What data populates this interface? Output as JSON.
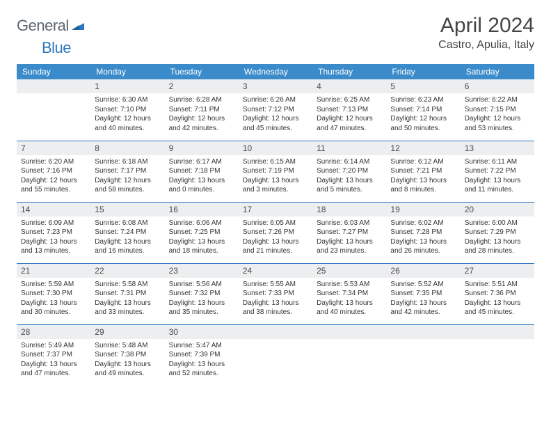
{
  "logo": {
    "text1": "General",
    "text2": "Blue"
  },
  "title": "April 2024",
  "location": "Castro, Apulia, Italy",
  "colors": {
    "header_bg": "#3b8bca",
    "header_fg": "#ffffff",
    "daynum_bg": "#eceef0",
    "divider": "#2d78bf",
    "logo_gray": "#5a6670",
    "logo_blue": "#2d78bf",
    "bg": "#ffffff",
    "text": "#333333"
  },
  "day_headers": [
    "Sunday",
    "Monday",
    "Tuesday",
    "Wednesday",
    "Thursday",
    "Friday",
    "Saturday"
  ],
  "weeks": [
    [
      {
        "n": "",
        "lines": []
      },
      {
        "n": "1",
        "lines": [
          "Sunrise: 6:30 AM",
          "Sunset: 7:10 PM",
          "Daylight: 12 hours",
          "and 40 minutes."
        ]
      },
      {
        "n": "2",
        "lines": [
          "Sunrise: 6:28 AM",
          "Sunset: 7:11 PM",
          "Daylight: 12 hours",
          "and 42 minutes."
        ]
      },
      {
        "n": "3",
        "lines": [
          "Sunrise: 6:26 AM",
          "Sunset: 7:12 PM",
          "Daylight: 12 hours",
          "and 45 minutes."
        ]
      },
      {
        "n": "4",
        "lines": [
          "Sunrise: 6:25 AM",
          "Sunset: 7:13 PM",
          "Daylight: 12 hours",
          "and 47 minutes."
        ]
      },
      {
        "n": "5",
        "lines": [
          "Sunrise: 6:23 AM",
          "Sunset: 7:14 PM",
          "Daylight: 12 hours",
          "and 50 minutes."
        ]
      },
      {
        "n": "6",
        "lines": [
          "Sunrise: 6:22 AM",
          "Sunset: 7:15 PM",
          "Daylight: 12 hours",
          "and 53 minutes."
        ]
      }
    ],
    [
      {
        "n": "7",
        "lines": [
          "Sunrise: 6:20 AM",
          "Sunset: 7:16 PM",
          "Daylight: 12 hours",
          "and 55 minutes."
        ]
      },
      {
        "n": "8",
        "lines": [
          "Sunrise: 6:18 AM",
          "Sunset: 7:17 PM",
          "Daylight: 12 hours",
          "and 58 minutes."
        ]
      },
      {
        "n": "9",
        "lines": [
          "Sunrise: 6:17 AM",
          "Sunset: 7:18 PM",
          "Daylight: 13 hours",
          "and 0 minutes."
        ]
      },
      {
        "n": "10",
        "lines": [
          "Sunrise: 6:15 AM",
          "Sunset: 7:19 PM",
          "Daylight: 13 hours",
          "and 3 minutes."
        ]
      },
      {
        "n": "11",
        "lines": [
          "Sunrise: 6:14 AM",
          "Sunset: 7:20 PM",
          "Daylight: 13 hours",
          "and 5 minutes."
        ]
      },
      {
        "n": "12",
        "lines": [
          "Sunrise: 6:12 AM",
          "Sunset: 7:21 PM",
          "Daylight: 13 hours",
          "and 8 minutes."
        ]
      },
      {
        "n": "13",
        "lines": [
          "Sunrise: 6:11 AM",
          "Sunset: 7:22 PM",
          "Daylight: 13 hours",
          "and 11 minutes."
        ]
      }
    ],
    [
      {
        "n": "14",
        "lines": [
          "Sunrise: 6:09 AM",
          "Sunset: 7:23 PM",
          "Daylight: 13 hours",
          "and 13 minutes."
        ]
      },
      {
        "n": "15",
        "lines": [
          "Sunrise: 6:08 AM",
          "Sunset: 7:24 PM",
          "Daylight: 13 hours",
          "and 16 minutes."
        ]
      },
      {
        "n": "16",
        "lines": [
          "Sunrise: 6:06 AM",
          "Sunset: 7:25 PM",
          "Daylight: 13 hours",
          "and 18 minutes."
        ]
      },
      {
        "n": "17",
        "lines": [
          "Sunrise: 6:05 AM",
          "Sunset: 7:26 PM",
          "Daylight: 13 hours",
          "and 21 minutes."
        ]
      },
      {
        "n": "18",
        "lines": [
          "Sunrise: 6:03 AM",
          "Sunset: 7:27 PM",
          "Daylight: 13 hours",
          "and 23 minutes."
        ]
      },
      {
        "n": "19",
        "lines": [
          "Sunrise: 6:02 AM",
          "Sunset: 7:28 PM",
          "Daylight: 13 hours",
          "and 26 minutes."
        ]
      },
      {
        "n": "20",
        "lines": [
          "Sunrise: 6:00 AM",
          "Sunset: 7:29 PM",
          "Daylight: 13 hours",
          "and 28 minutes."
        ]
      }
    ],
    [
      {
        "n": "21",
        "lines": [
          "Sunrise: 5:59 AM",
          "Sunset: 7:30 PM",
          "Daylight: 13 hours",
          "and 30 minutes."
        ]
      },
      {
        "n": "22",
        "lines": [
          "Sunrise: 5:58 AM",
          "Sunset: 7:31 PM",
          "Daylight: 13 hours",
          "and 33 minutes."
        ]
      },
      {
        "n": "23",
        "lines": [
          "Sunrise: 5:56 AM",
          "Sunset: 7:32 PM",
          "Daylight: 13 hours",
          "and 35 minutes."
        ]
      },
      {
        "n": "24",
        "lines": [
          "Sunrise: 5:55 AM",
          "Sunset: 7:33 PM",
          "Daylight: 13 hours",
          "and 38 minutes."
        ]
      },
      {
        "n": "25",
        "lines": [
          "Sunrise: 5:53 AM",
          "Sunset: 7:34 PM",
          "Daylight: 13 hours",
          "and 40 minutes."
        ]
      },
      {
        "n": "26",
        "lines": [
          "Sunrise: 5:52 AM",
          "Sunset: 7:35 PM",
          "Daylight: 13 hours",
          "and 42 minutes."
        ]
      },
      {
        "n": "27",
        "lines": [
          "Sunrise: 5:51 AM",
          "Sunset: 7:36 PM",
          "Daylight: 13 hours",
          "and 45 minutes."
        ]
      }
    ],
    [
      {
        "n": "28",
        "lines": [
          "Sunrise: 5:49 AM",
          "Sunset: 7:37 PM",
          "Daylight: 13 hours",
          "and 47 minutes."
        ]
      },
      {
        "n": "29",
        "lines": [
          "Sunrise: 5:48 AM",
          "Sunset: 7:38 PM",
          "Daylight: 13 hours",
          "and 49 minutes."
        ]
      },
      {
        "n": "30",
        "lines": [
          "Sunrise: 5:47 AM",
          "Sunset: 7:39 PM",
          "Daylight: 13 hours",
          "and 52 minutes."
        ]
      },
      {
        "n": "",
        "lines": []
      },
      {
        "n": "",
        "lines": []
      },
      {
        "n": "",
        "lines": []
      },
      {
        "n": "",
        "lines": []
      }
    ]
  ]
}
